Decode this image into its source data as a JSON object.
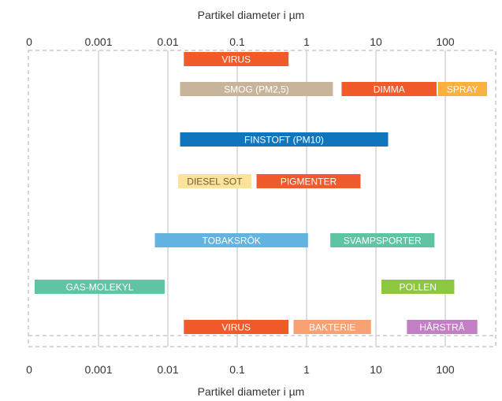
{
  "chart_data": {
    "type": "range-bar",
    "title": "",
    "xlabel_top": "Partikel diameter i µm",
    "xlabel_bottom": "Partikel diameter i µm",
    "x_scale": "log",
    "ticks": [
      {
        "label": "0",
        "value": 0.0001
      },
      {
        "label": "0.001",
        "value": 0.001
      },
      {
        "label": "0.01",
        "value": 0.01
      },
      {
        "label": "0.1",
        "value": 0.1
      },
      {
        "label": "1",
        "value": 1
      },
      {
        "label": "10",
        "value": 10
      },
      {
        "label": "100",
        "value": 100
      }
    ],
    "xlim": [
      0.0001,
      500
    ],
    "grid": true,
    "rows": [
      {
        "bars": [
          {
            "label": "VIRUS",
            "start": 0.017,
            "end": 0.55,
            "color": "#f15a2b"
          }
        ]
      },
      {
        "bars": [
          {
            "label": "SMOG (PM2,5)",
            "start": 0.015,
            "end": 2.4,
            "color": "#c8b49b"
          },
          {
            "label": "DIMMA",
            "start": 3.2,
            "end": 75,
            "color": "#f15a2b"
          },
          {
            "label": "SPRAY",
            "start": 78,
            "end": 400,
            "color": "#fbb040"
          }
        ]
      },
      {
        "bars": [
          {
            "label": "FINSTOFT (PM10)",
            "start": 0.015,
            "end": 15,
            "color": "#0f75bc"
          }
        ]
      },
      {
        "bars": [
          {
            "label": "DIESEL SOT",
            "start": 0.014,
            "end": 0.16,
            "color": "#fde29c",
            "text_color": "#6b5e3a"
          },
          {
            "label": "PIGMENTER",
            "start": 0.19,
            "end": 6,
            "color": "#f15a2b"
          }
        ]
      },
      {
        "bars": [
          {
            "label": "TOBAKSRÖK",
            "start": 0.0065,
            "end": 1.05,
            "color": "#62b3e0"
          },
          {
            "label": "SVAMPSPORTER",
            "start": 2.2,
            "end": 70,
            "color": "#5fc4a4"
          }
        ]
      },
      {
        "bars": [
          {
            "label": "GAS-MOLEKYL",
            "start": 0.00012,
            "end": 0.009,
            "color": "#5fc4a4"
          },
          {
            "label": "POLLEN",
            "start": 12,
            "end": 135,
            "color": "#8dc63f"
          }
        ]
      },
      {
        "bars": [
          {
            "label": "VIRUS",
            "start": 0.017,
            "end": 0.55,
            "color": "#f15a2b"
          },
          {
            "label": "BAKTERIE",
            "start": 0.65,
            "end": 8.5,
            "color": "#f7a173"
          },
          {
            "label": "HÅRSTRÅ",
            "start": 28,
            "end": 290,
            "color": "#c27fc6"
          }
        ]
      }
    ],
    "colors": {
      "grid": "#d4d4d4",
      "frame": "#c8c8c8",
      "tick_text": "#333333"
    }
  }
}
